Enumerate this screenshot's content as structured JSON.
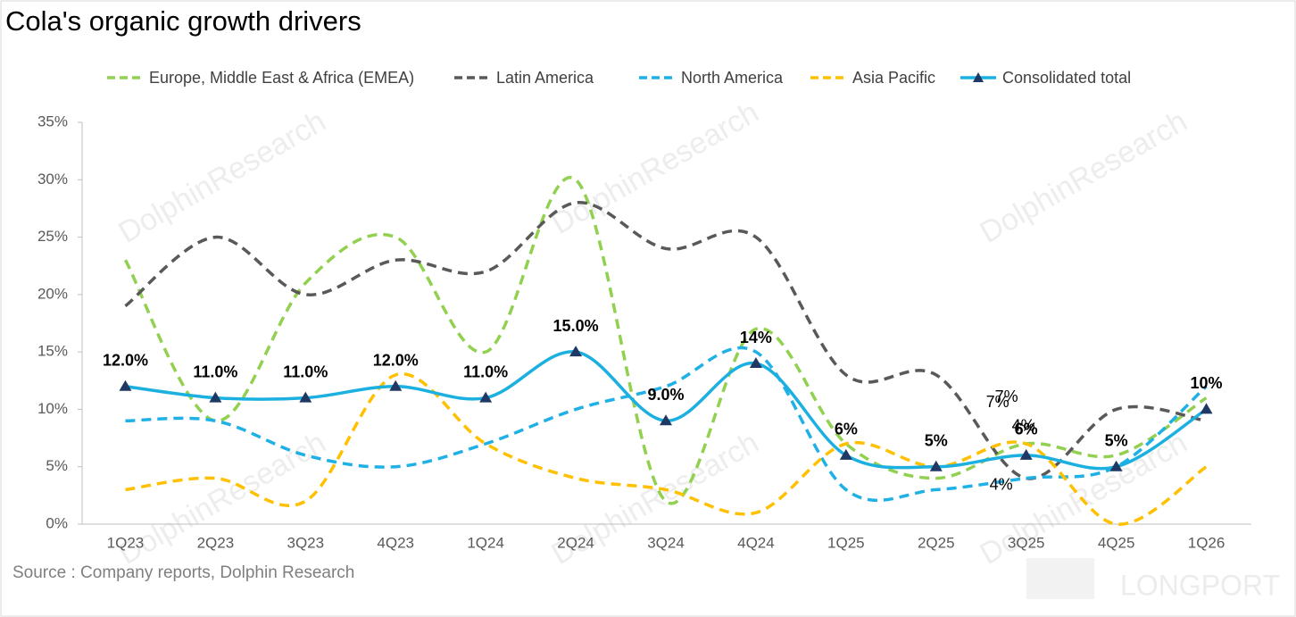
{
  "chart_data": {
    "type": "line",
    "title": "Cola's organic growth  drivers",
    "source": "Source : Company reports, Dolphin Research",
    "watermark": "DolphinResearch",
    "logo": "LONGPORT",
    "categories": [
      "1Q23",
      "2Q23",
      "3Q23",
      "4Q23",
      "1Q24",
      "2Q24",
      "3Q24",
      "4Q24",
      "1Q25",
      "2Q25",
      "3Q25",
      "4Q25",
      "1Q26"
    ],
    "ylim": [
      0,
      35
    ],
    "yticks": [
      {
        "value": 0,
        "label": "0%"
      },
      {
        "value": 5,
        "label": "5%"
      },
      {
        "value": 10,
        "label": "10%"
      },
      {
        "value": 15,
        "label": "15%"
      },
      {
        "value": 20,
        "label": "20%"
      },
      {
        "value": 25,
        "label": "25%"
      },
      {
        "value": 30,
        "label": "30%"
      },
      {
        "value": 35,
        "label": "35%"
      }
    ],
    "legend": "top",
    "series": [
      {
        "name": "Europe, Middle East & Africa (EMEA)",
        "color": "#92d050",
        "dashed": true,
        "values": [
          23,
          9,
          21,
          25,
          15,
          30,
          2,
          17,
          7,
          4,
          7,
          6,
          11
        ],
        "value_labels": [
          null,
          null,
          null,
          null,
          null,
          null,
          null,
          null,
          null,
          null,
          "7%",
          null,
          null
        ]
      },
      {
        "name": "Latin America",
        "color": "#595959",
        "dashed": true,
        "values": [
          19,
          25,
          20,
          23,
          22,
          28,
          24,
          25,
          13,
          13,
          4,
          10,
          9
        ],
        "value_labels": [
          null,
          null,
          null,
          null,
          null,
          null,
          null,
          null,
          null,
          null,
          "4%",
          null,
          null
        ]
      },
      {
        "name": "North America",
        "color": "#1fb0e6",
        "dashed": true,
        "values": [
          9,
          9,
          6,
          5,
          7,
          10,
          12,
          15,
          3,
          3,
          4,
          5,
          12
        ],
        "value_labels": [
          null,
          null,
          null,
          null,
          null,
          null,
          null,
          null,
          null,
          null,
          "4%",
          null,
          null
        ]
      },
      {
        "name": "Asia Pacific",
        "color": "#ffc000",
        "dashed": true,
        "values": [
          3,
          4,
          2,
          13,
          7,
          4,
          3,
          1,
          7,
          5,
          7,
          0,
          5
        ],
        "value_labels": [
          null,
          null,
          null,
          null,
          null,
          null,
          null,
          null,
          null,
          null,
          "7%",
          null,
          null
        ]
      },
      {
        "name": "Consolidated total",
        "color": "#1cb0e0",
        "dashed": false,
        "marker_color": "#1f3864",
        "values": [
          12,
          11,
          11,
          12,
          11,
          15,
          9,
          14,
          6,
          5,
          6,
          5,
          10
        ],
        "value_labels": [
          "12.0%",
          "11.0%",
          "11.0%",
          "12.0%",
          "11.0%",
          "15.0%",
          "9.0%",
          "14%",
          "6%",
          "5%",
          "6%",
          "5%",
          "10%"
        ]
      }
    ]
  }
}
